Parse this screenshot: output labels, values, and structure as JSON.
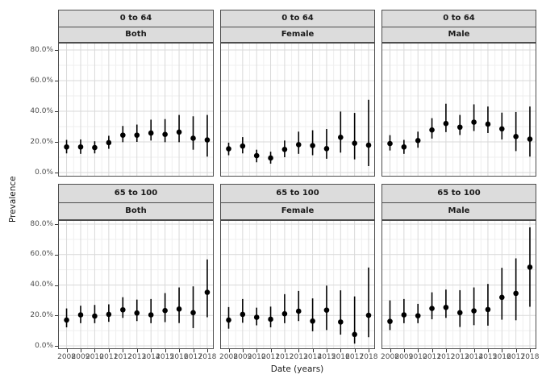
{
  "chart_data": {
    "type": "scatter",
    "subtype": "pointrange-facet-grid",
    "title": "",
    "xlabel": "Date (years)",
    "ylabel": "Prevalence",
    "x": [
      2008,
      2009,
      2010,
      2011,
      2012,
      2013,
      2014,
      2015,
      2016,
      2017,
      2018
    ],
    "ylim": [
      0,
      80
    ],
    "y_unit": "%",
    "y_tick_values": [
      80,
      60,
      40,
      20,
      0
    ],
    "y_tick_labels": [
      "80.0%",
      "60.0%",
      "40.0%",
      "20.0%",
      "0.0%"
    ],
    "grid": true,
    "legend": "none",
    "facet_rows": [
      "0 to 64",
      "65 to 100"
    ],
    "facet_cols": [
      "Both",
      "Female",
      "Male"
    ],
    "panels": [
      {
        "age": "0 to 64",
        "sex": "Both",
        "values": [
          16.7,
          16.7,
          16.3,
          19.5,
          24.4,
          24.4,
          25.8,
          24.9,
          26.4,
          22.4,
          21.3
        ],
        "ci_low": [
          12.5,
          12.2,
          12.5,
          15.5,
          19.8,
          20.0,
          20.9,
          19.8,
          19.8,
          14.9,
          10.4
        ],
        "ci_high": [
          21.3,
          21.6,
          20.4,
          24.0,
          30.4,
          31.3,
          34.5,
          34.9,
          37.6,
          36.7,
          37.6
        ]
      },
      {
        "age": "0 to 64",
        "sex": "Female",
        "values": [
          15.5,
          17.3,
          11.0,
          9.5,
          15.1,
          18.2,
          17.6,
          15.6,
          23.0,
          19.1,
          17.9
        ],
        "ci_low": [
          11.3,
          12.5,
          6.7,
          5.8,
          10.0,
          12.2,
          11.3,
          9.0,
          13.0,
          8.6,
          4.2
        ],
        "ci_high": [
          19.5,
          23.1,
          14.9,
          13.6,
          20.9,
          26.7,
          27.6,
          28.4,
          39.8,
          38.9,
          47.5
        ]
      },
      {
        "age": "0 to 64",
        "sex": "Male",
        "values": [
          18.9,
          16.7,
          20.9,
          27.8,
          32.0,
          29.6,
          32.9,
          31.6,
          28.5,
          23.5,
          21.8
        ],
        "ci_low": [
          14.4,
          12.2,
          16.2,
          22.2,
          26.4,
          24.5,
          27.1,
          25.8,
          21.6,
          14.0,
          10.4
        ],
        "ci_high": [
          24.4,
          21.3,
          26.7,
          35.5,
          44.9,
          37.6,
          44.5,
          43.1,
          39.1,
          39.5,
          43.1
        ]
      },
      {
        "age": "65 to 100",
        "sex": "Both",
        "values": [
          17.0,
          20.4,
          19.6,
          20.7,
          23.7,
          21.6,
          20.4,
          23.2,
          24.2,
          21.8,
          35.2
        ],
        "ci_low": [
          12.2,
          14.9,
          14.9,
          15.8,
          18.4,
          16.3,
          14.9,
          15.6,
          15.0,
          11.7,
          18.8
        ],
        "ci_high": [
          24.6,
          26.4,
          26.9,
          27.3,
          32.0,
          30.4,
          30.8,
          34.7,
          38.4,
          39.1,
          56.8
        ]
      },
      {
        "age": "65 to 100",
        "sex": "Female",
        "values": [
          17.0,
          20.7,
          18.8,
          17.5,
          21.1,
          22.8,
          16.3,
          23.5,
          15.7,
          7.5,
          20.1
        ],
        "ci_low": [
          11.3,
          15.2,
          13.5,
          12.2,
          14.9,
          16.3,
          9.6,
          10.4,
          7.4,
          1.5,
          5.7
        ],
        "ci_high": [
          25.5,
          30.8,
          25.1,
          25.8,
          34.0,
          36.1,
          31.2,
          39.6,
          36.5,
          32.5,
          51.5
        ]
      },
      {
        "age": "65 to 100",
        "sex": "Male",
        "values": [
          16.1,
          20.4,
          19.8,
          24.6,
          25.3,
          21.8,
          23.0,
          23.9,
          31.9,
          34.5,
          51.7
        ],
        "ci_low": [
          10.4,
          14.9,
          14.9,
          17.5,
          18.4,
          12.4,
          13.6,
          13.3,
          17.2,
          16.8,
          25.7
        ],
        "ci_high": [
          29.9,
          30.8,
          27.6,
          35.2,
          37.0,
          36.6,
          38.4,
          40.7,
          51.3,
          57.5,
          77.9
        ]
      }
    ]
  },
  "colors": {
    "background": "#FFFFFF",
    "strip_fill": "#DCDCDC",
    "strip_border": "#4D4D4D",
    "panel_border": "#4D4D4D",
    "grid_major": "#D9D9D9",
    "grid_minor": "#EFEFEF",
    "point": "#000000",
    "error_bar": "#000000",
    "axis_text": "#4D4D4D",
    "tick_mark": "#333333",
    "title_text": "#1A1A1A"
  }
}
